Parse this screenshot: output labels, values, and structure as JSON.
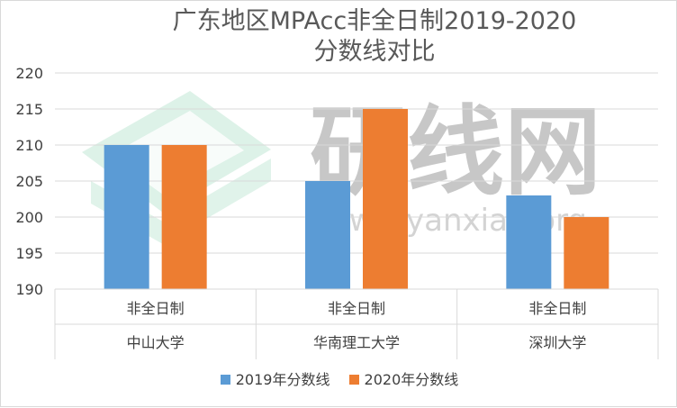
{
  "title": {
    "line1": "广东地区MPAcc非全日制2019-2020",
    "line2": "分数线对比"
  },
  "watermark": {
    "text": "研线网",
    "url": "www.yanxian.org"
  },
  "chart_data": {
    "type": "bar",
    "title": "广东地区MPAcc非全日制2019-2020 分数线对比",
    "categories": [
      {
        "program": "非全日制",
        "school": "中山大学"
      },
      {
        "program": "非全日制",
        "school": "华南理工大学"
      },
      {
        "program": "非全日制",
        "school": "深圳大学"
      }
    ],
    "series": [
      {
        "name": "2019年分数线",
        "color": "#5b9bd5",
        "values": [
          210,
          205,
          203
        ]
      },
      {
        "name": "2020年分数线",
        "color": "#ed7d31",
        "values": [
          210,
          215,
          200
        ]
      }
    ],
    "ylim": [
      190,
      220
    ],
    "yticks": [
      190,
      195,
      200,
      205,
      210,
      215,
      220
    ],
    "grid": true,
    "legend_position": "bottom"
  }
}
